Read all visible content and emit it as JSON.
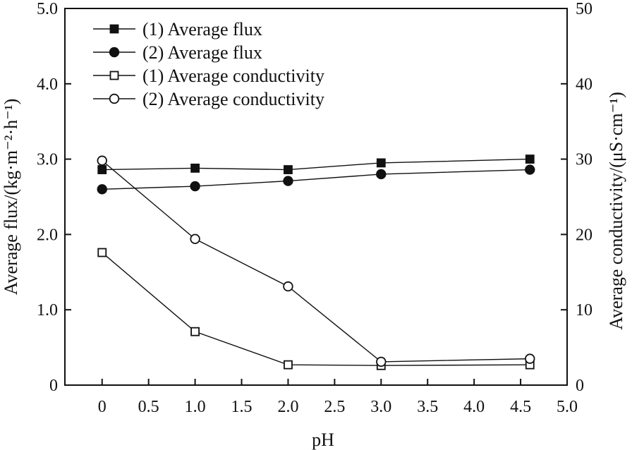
{
  "chart_data": {
    "type": "line",
    "xlabel": "pH",
    "ylabel_left": "Average flux/(kg·m⁻²·h⁻¹)",
    "ylabel_right": "Average conductivity/(μS·cm⁻¹)",
    "xlim": [
      -0.4,
      5.0
    ],
    "ylim_left": [
      0,
      5.0
    ],
    "ylim_right": [
      0,
      50
    ],
    "grid": false,
    "legend_position": "top-left",
    "x_ticks": [
      0,
      0.5,
      1.0,
      1.5,
      2.0,
      2.5,
      3.0,
      3.5,
      4.0,
      4.5,
      5.0
    ],
    "x_tick_labels": [
      "0",
      "0.5",
      "1.0",
      "1.5",
      "2.0",
      "2.5",
      "3.0",
      "3.5",
      "4.0",
      "4.5",
      "5.0"
    ],
    "left_ticks": [
      0,
      1.0,
      2.0,
      3.0,
      4.0,
      5.0
    ],
    "left_tick_labels": [
      "0",
      "1.0",
      "2.0",
      "3.0",
      "4.0",
      "5.0"
    ],
    "right_ticks": [
      0,
      10,
      20,
      30,
      40,
      50
    ],
    "right_tick_labels": [
      "0",
      "10",
      "20",
      "30",
      "40",
      "50"
    ],
    "series": [
      {
        "name": "(1) Average flux",
        "axis": "left",
        "marker": "square",
        "filled": true,
        "x": [
          0,
          1.0,
          2.0,
          3.0,
          4.6
        ],
        "values": [
          2.86,
          2.88,
          2.86,
          2.95,
          3.0
        ]
      },
      {
        "name": "(2) Average flux",
        "axis": "left",
        "marker": "circle",
        "filled": true,
        "x": [
          0,
          1.0,
          2.0,
          3.0,
          4.6
        ],
        "values": [
          2.6,
          2.64,
          2.71,
          2.8,
          2.86
        ]
      },
      {
        "name": "(1) Average conductivity",
        "axis": "right",
        "marker": "square",
        "filled": false,
        "x": [
          0,
          1.0,
          2.0,
          3.0,
          4.6
        ],
        "values": [
          17.6,
          7.1,
          2.7,
          2.6,
          2.7
        ]
      },
      {
        "name": "(2) Average conductivity",
        "axis": "right",
        "marker": "circle",
        "filled": false,
        "x": [
          0,
          1.0,
          2.0,
          3.0,
          4.6
        ],
        "values": [
          29.8,
          19.4,
          13.1,
          3.1,
          3.5
        ]
      }
    ],
    "colors": {
      "line": "#111111",
      "background": "#ffffff"
    }
  }
}
